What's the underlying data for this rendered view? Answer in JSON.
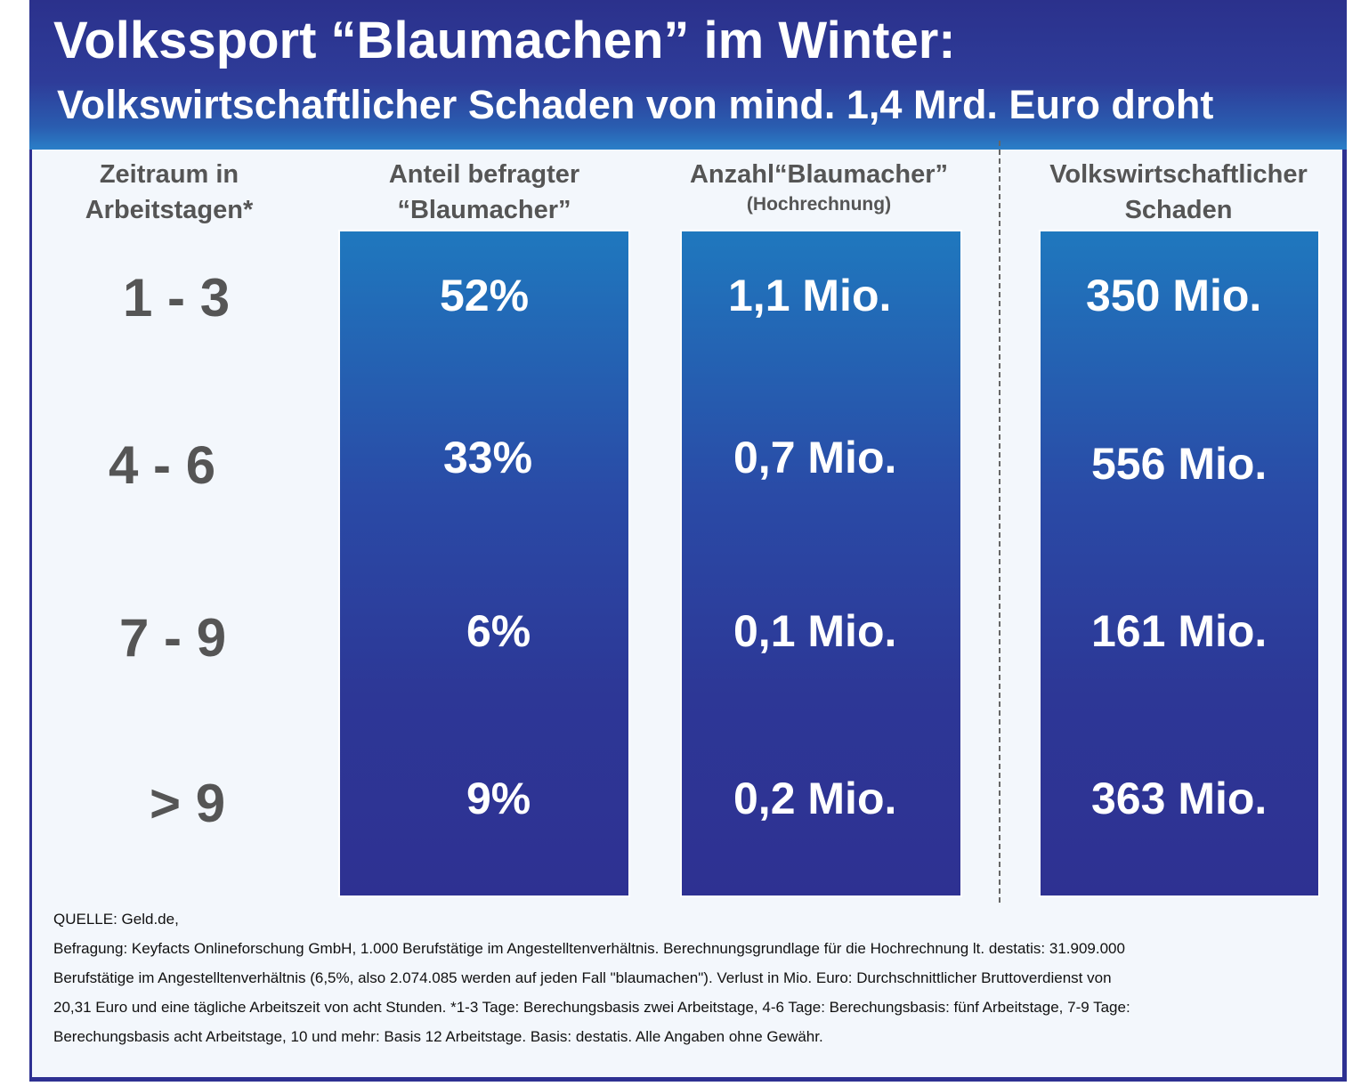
{
  "header": {
    "title": "Volkssport “Blaumachen” im Winter:",
    "subtitle": "Volkswirtschaftlicher Schaden von mind. 1,4 Mrd. Euro droht"
  },
  "columns": {
    "zeitraum": {
      "line1": "Zeitraum in",
      "line2": "Arbeitstagen*"
    },
    "anteil": {
      "line1": "Anteil befragter",
      "line2": "“Blaumacher”"
    },
    "anzahl": {
      "line1": "Anzahl“Blaumacher”",
      "line2": "(Hochrechnung)"
    },
    "schaden": {
      "line1": "Volkswirtschaftlicher",
      "line2": "Schaden"
    }
  },
  "rows": [
    {
      "zeitraum": "1 - 3",
      "anteil": "52%",
      "anzahl": "1,1 Mio.",
      "schaden": "350 Mio."
    },
    {
      "zeitraum": "4 - 6",
      "anteil": "33%",
      "anzahl": "0,7 Mio.",
      "schaden": "556 Mio."
    },
    {
      "zeitraum": "7 - 9",
      "anteil": "6%",
      "anzahl": "0,1 Mio.",
      "schaden": "161 Mio."
    },
    {
      "zeitraum": "> 9",
      "anteil": "9%",
      "anzahl": "0,2 Mio.",
      "schaden": "363 Mio."
    }
  ],
  "footer": {
    "lines": [
      "QUELLE: Geld.de,",
      "Befragung: Keyfacts Onlineforschung GmbH, 1.000 Berufstätige im Angestelltenverhältnis.  Berechnungsgrundlage für die Hochrechnung lt. destatis: 31.909.000",
      "Berufstätige im Angestelltenverhältnis (6,5%, also  2.074.085 werden auf jeden Fall \"blaumachen\"). Verlust in Mio. Euro: Durchschnittlicher Bruttoverdienst von",
      "20,31 Euro und eine tägliche Arbeitszeit von acht Stunden.  *1-3 Tage: Berechungsbasis zwei Arbeitstage, 4-6 Tage: Berechungsbasis: fünf Arbeitstage, 7-9 Tage:",
      "Berechungsbasis acht Arbeitstage, 10 und mehr: Basis 12 Arbeitstage. Basis: destatis. Alle Angaben ohne Gewähr."
    ]
  }
}
